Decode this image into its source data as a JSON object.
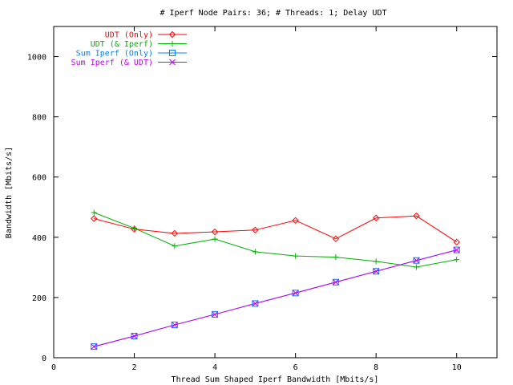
{
  "chart_data": {
    "type": "line",
    "title": "# Iperf Node Pairs: 36; # Threads: 1; Delay UDT",
    "xlabel": "Thread Sum Shaped Iperf Bandwidth [Mbits/s]",
    "ylabel": "Bandwidth [Mbits/s]",
    "xlim": [
      0,
      11
    ],
    "ylim": [
      0,
      1100
    ],
    "xticks": [
      0,
      2,
      4,
      6,
      8,
      10
    ],
    "yticks": [
      0,
      200,
      400,
      600,
      800,
      1000
    ],
    "grid": false,
    "legend_position": "top-left",
    "x": [
      1,
      2,
      3,
      4,
      5,
      6,
      7,
      8,
      9,
      10
    ],
    "series": [
      {
        "name": "UDT (Only)",
        "color": "#ff0000",
        "marker": "diamond",
        "values": [
          462,
          427,
          413,
          418,
          424,
          456,
          395,
          464,
          471,
          384
        ]
      },
      {
        "name": "UDT (& Iperf)",
        "color": "#00b000",
        "marker": "plus",
        "values": [
          482,
          430,
          371,
          394,
          352,
          338,
          334,
          320,
          301,
          326
        ]
      },
      {
        "name": "Sum Iperf (Only)",
        "color": "#0080ff",
        "marker": "square",
        "values": [
          37,
          72,
          109,
          144,
          180,
          215,
          251,
          287,
          323,
          358
        ]
      },
      {
        "name": "Sum Iperf (& UDT)",
        "color": "#c000ff",
        "marker": "x",
        "values": [
          37,
          72,
          109,
          144,
          180,
          215,
          251,
          287,
          323,
          358
        ]
      }
    ]
  }
}
